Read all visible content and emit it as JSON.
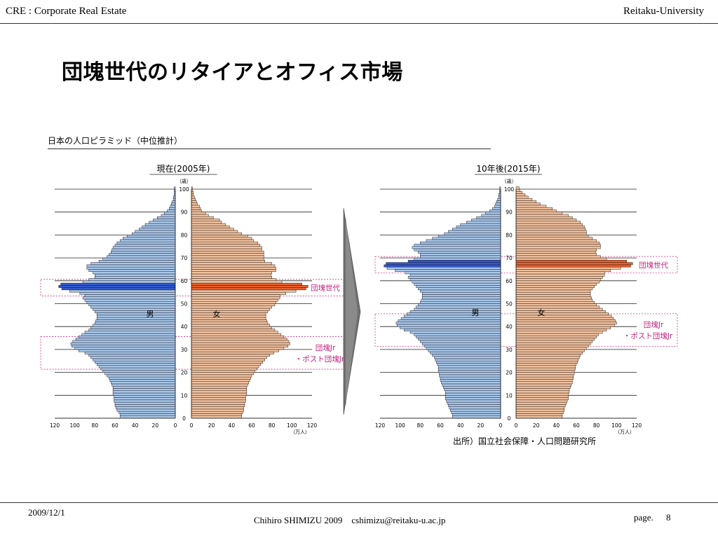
{
  "header": {
    "left": "CRE : Corporate Real Estate",
    "right": "Reitaku-University"
  },
  "title": "団塊世代のリタイアとオフィス市場",
  "subtitle": "日本の人口ピラミッド（中位推計）",
  "source": "出所）国立社会保障・人口問題研究所",
  "footer": {
    "date": "2009/12/1",
    "author": "Chihiro SHIMIZU 2009　cshimizu@reitaku-u.ac.jp",
    "page_label": "page.",
    "page_number": "8"
  },
  "arrow_color": "#707070",
  "chart_data": [
    {
      "type": "bar",
      "title": "現在(2005年)",
      "age_unit": "（歳）",
      "value_unit": "（万人）",
      "male_label": "男",
      "female_label": "女",
      "xlim": [
        0,
        120
      ],
      "x_ticks": [
        120,
        100,
        80,
        60,
        40,
        20,
        0
      ],
      "age_ticks": [
        0,
        10,
        20,
        30,
        40,
        50,
        60,
        70,
        80,
        90,
        100
      ],
      "colors": {
        "male": "#a9c8ea",
        "female": "#f2c3a1",
        "male_highlight": "#3358cc",
        "female_highlight": "#e8602e"
      },
      "highlight_ages": [
        56,
        57,
        58
      ],
      "annotations": [
        {
          "text": [
            "団塊世代"
          ],
          "age_range": [
            54,
            60
          ]
        },
        {
          "text": [
            "団塊Jr",
            "・ポスト団塊Jr"
          ],
          "age_range": [
            22,
            35
          ]
        }
      ],
      "series": [
        {
          "name": "男",
          "values": [
            55,
            55,
            56,
            58,
            59,
            60,
            60,
            61,
            61,
            61,
            62,
            62,
            62,
            62,
            63,
            64,
            65,
            66,
            68,
            70,
            72,
            74,
            76,
            78,
            80,
            82,
            84,
            86,
            90,
            96,
            100,
            103,
            104,
            102,
            99,
            96,
            93,
            90,
            86,
            84,
            82,
            80,
            79,
            78,
            78,
            78,
            80,
            82,
            84,
            86,
            88,
            90,
            92,
            90,
            95,
            105,
            113,
            116,
            114,
            92,
            86,
            80,
            80,
            82,
            86,
            88,
            88,
            84,
            76,
            72,
            68,
            66,
            64,
            63,
            62,
            60,
            58,
            55,
            52,
            48,
            43,
            40,
            36,
            33,
            30,
            26,
            22,
            18,
            14,
            11,
            8,
            6,
            5,
            4,
            3,
            2,
            2,
            1,
            1,
            1,
            1
          ]
        },
        {
          "name": "女",
          "values": [
            50,
            50,
            51,
            52,
            52,
            53,
            53,
            54,
            54,
            54,
            55,
            55,
            55,
            55,
            56,
            57,
            58,
            59,
            60,
            62,
            63,
            65,
            67,
            69,
            71,
            73,
            75,
            78,
            82,
            87,
            92,
            96,
            98,
            97,
            95,
            92,
            89,
            86,
            83,
            80,
            78,
            76,
            75,
            74,
            74,
            74,
            76,
            78,
            80,
            83,
            84,
            86,
            88,
            88,
            94,
            104,
            114,
            116,
            110,
            90,
            84,
            80,
            79,
            80,
            84,
            84,
            83,
            80,
            73,
            72,
            72,
            72,
            72,
            70,
            70,
            68,
            66,
            62,
            60,
            56,
            50,
            46,
            42,
            38,
            34,
            30,
            28,
            22,
            17,
            14,
            10,
            9,
            8,
            6,
            5,
            4,
            3,
            2,
            2,
            1,
            1
          ]
        }
      ]
    },
    {
      "type": "bar",
      "title": "10年後(2015年)",
      "age_unit": "（歳）",
      "value_unit": "（万人）",
      "male_label": "男",
      "female_label": "女",
      "xlim": [
        0,
        120
      ],
      "x_ticks": [
        120,
        100,
        80,
        60,
        40,
        20,
        0
      ],
      "age_ticks": [
        0,
        10,
        20,
        30,
        40,
        50,
        60,
        70,
        80,
        90,
        100
      ],
      "colors": {
        "male": "#a9c8ea",
        "female": "#f2c3a1",
        "male_highlight": "#3358cc",
        "female_highlight": "#e8602e"
      },
      "highlight_ages": [
        66,
        67,
        68
      ],
      "annotations": [
        {
          "text": [
            "団塊世代"
          ],
          "age_range": [
            64,
            70
          ]
        },
        {
          "text": [
            "団塊Jr",
            "・ポスト団塊Jr"
          ],
          "age_range": [
            32,
            45
          ]
        }
      ],
      "series": [
        {
          "name": "男",
          "values": [
            48,
            48,
            49,
            50,
            51,
            52,
            53,
            54,
            55,
            55,
            55,
            55,
            56,
            57,
            58,
            59,
            60,
            60,
            61,
            61,
            62,
            62,
            62,
            63,
            64,
            65,
            66,
            68,
            70,
            72,
            74,
            76,
            78,
            80,
            82,
            84,
            86,
            90,
            96,
            100,
            103,
            104,
            102,
            99,
            96,
            93,
            90,
            86,
            84,
            82,
            80,
            79,
            78,
            78,
            78,
            80,
            82,
            84,
            86,
            88,
            90,
            92,
            90,
            95,
            105,
            113,
            116,
            114,
            92,
            86,
            80,
            80,
            82,
            86,
            88,
            86,
            80,
            74,
            68,
            62,
            56,
            52,
            48,
            44,
            40,
            34,
            29,
            24,
            19,
            15,
            11,
            8,
            6,
            5,
            4,
            3,
            2,
            2,
            1,
            1,
            1
          ]
        },
        {
          "name": "女",
          "values": [
            46,
            46,
            47,
            48,
            48,
            49,
            50,
            51,
            52,
            52,
            52,
            53,
            53,
            54,
            55,
            56,
            56,
            57,
            57,
            58,
            58,
            59,
            59,
            60,
            61,
            62,
            63,
            64,
            66,
            68,
            70,
            72,
            74,
            76,
            78,
            80,
            82,
            86,
            90,
            94,
            98,
            100,
            99,
            97,
            95,
            92,
            89,
            86,
            83,
            80,
            78,
            76,
            75,
            74,
            74,
            74,
            76,
            78,
            80,
            83,
            84,
            86,
            88,
            88,
            94,
            104,
            114,
            116,
            110,
            90,
            84,
            80,
            79,
            80,
            84,
            84,
            83,
            80,
            76,
            72,
            70,
            70,
            69,
            68,
            66,
            64,
            60,
            56,
            52,
            46,
            40,
            36,
            30,
            24,
            20,
            16,
            12,
            9,
            6,
            4,
            3
          ]
        }
      ]
    }
  ]
}
